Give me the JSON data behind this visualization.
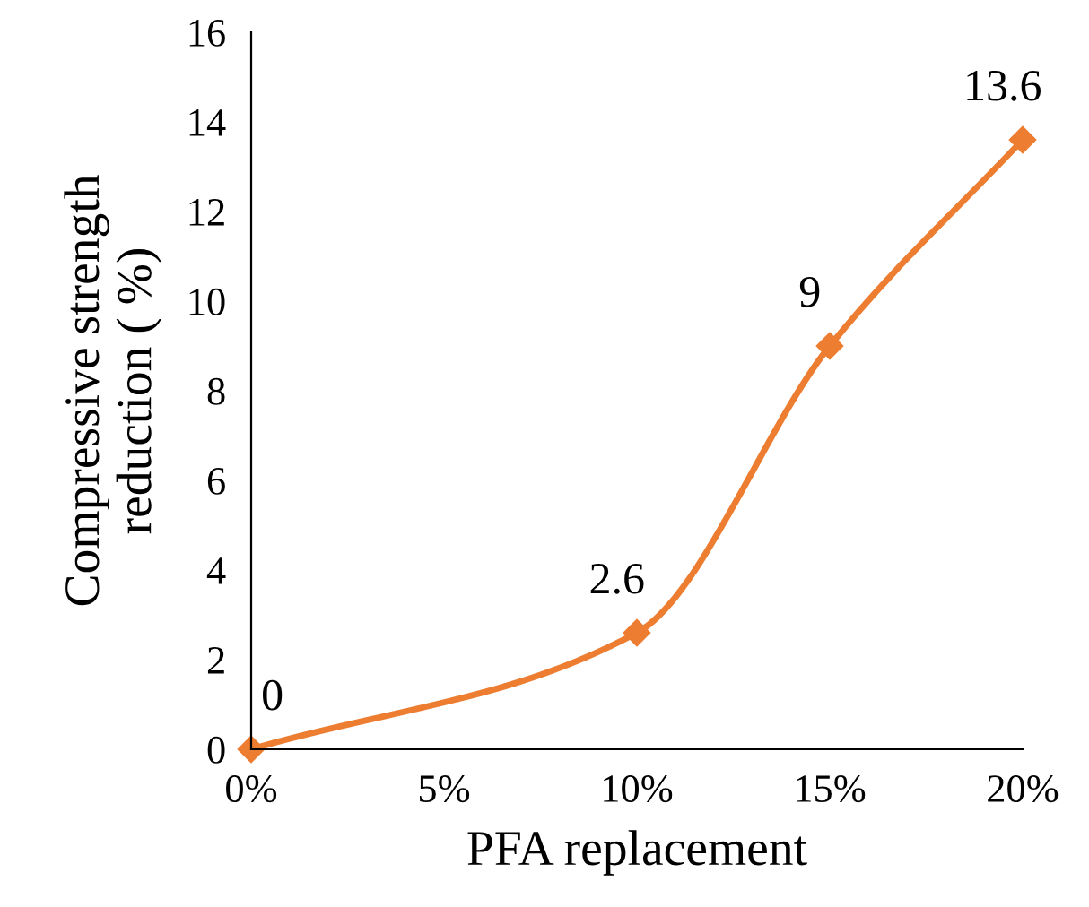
{
  "chart_data": {
    "type": "line",
    "xlabel": "PFA replacement",
    "ylabel": "Compressive strength\nreduction ( %)",
    "x": [
      0,
      10,
      15,
      20
    ],
    "series": [
      {
        "color": "#ed7d31",
        "values": [
          0,
          2.6,
          9,
          13.6
        ]
      }
    ],
    "xlim": [
      0,
      20
    ],
    "xticks": [
      {
        "value": 0,
        "label": "0%"
      },
      {
        "value": 5,
        "label": "5%"
      },
      {
        "value": 10,
        "label": "10%"
      },
      {
        "value": 15,
        "label": "15%"
      },
      {
        "value": 20,
        "label": "20%"
      }
    ],
    "ylim": [
      0,
      16
    ],
    "yticks": [
      0,
      2,
      4,
      6,
      8,
      10,
      12,
      14,
      16
    ],
    "data_labels": true,
    "marker": "diamond",
    "line_style": "solid",
    "grid": false,
    "legend": false
  }
}
